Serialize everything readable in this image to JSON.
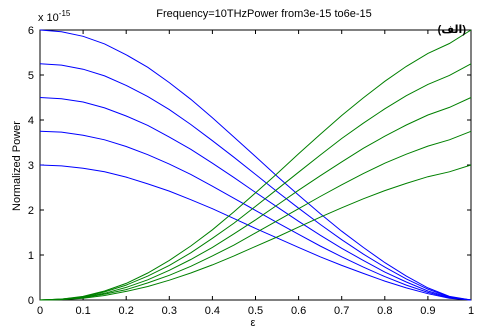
{
  "chart_data": {
    "type": "line",
    "title": "Frequency=10THzPower from3e-15  to6e-15",
    "annotation": "(الف)",
    "xlabel": "ε",
    "ylabel": "Normalized Power",
    "exponent_label": "x 10",
    "exponent_power": "-15",
    "xlim": [
      0,
      1
    ],
    "ylim": [
      0,
      6
    ],
    "x_ticks": [
      "0",
      "0.1",
      "0.2",
      "0.3",
      "0.4",
      "0.5",
      "0.6",
      "0.7",
      "0.8",
      "0.9",
      "1"
    ],
    "y_ticks": [
      "0",
      "1",
      "2",
      "3",
      "4",
      "5",
      "6"
    ],
    "grid": false,
    "x": [
      0,
      0.05,
      0.1,
      0.15,
      0.2,
      0.25,
      0.3,
      0.35,
      0.4,
      0.45,
      0.5,
      0.55,
      0.6,
      0.65,
      0.7,
      0.75,
      0.8,
      0.85,
      0.9,
      0.95,
      1
    ],
    "series": [
      {
        "color": "#0000ff",
        "values": [
          6.0,
          5.96,
          5.86,
          5.69,
          5.45,
          5.17,
          4.83,
          4.46,
          4.05,
          3.62,
          3.19,
          2.75,
          2.33,
          1.92,
          1.53,
          1.17,
          0.83,
          0.53,
          0.27,
          0.08,
          0.0
        ]
      },
      {
        "color": "#0000ff",
        "values": [
          5.25,
          5.22,
          5.13,
          4.98,
          4.77,
          4.52,
          4.23,
          3.9,
          3.54,
          3.17,
          2.79,
          2.41,
          2.04,
          1.68,
          1.34,
          1.02,
          0.73,
          0.47,
          0.24,
          0.07,
          0.0
        ]
      },
      {
        "color": "#0000ff",
        "values": [
          4.5,
          4.47,
          4.4,
          4.27,
          4.09,
          3.88,
          3.62,
          3.35,
          3.04,
          2.72,
          2.39,
          2.07,
          1.75,
          1.44,
          1.15,
          0.88,
          0.62,
          0.4,
          0.2,
          0.06,
          0.0
        ]
      },
      {
        "color": "#0000ff",
        "values": [
          3.75,
          3.73,
          3.66,
          3.56,
          3.41,
          3.23,
          3.02,
          2.79,
          2.53,
          2.26,
          1.99,
          1.72,
          1.46,
          1.2,
          0.96,
          0.73,
          0.52,
          0.33,
          0.17,
          0.05,
          0.0
        ]
      },
      {
        "color": "#0000ff",
        "values": [
          3.0,
          2.98,
          2.93,
          2.85,
          2.73,
          2.58,
          2.42,
          2.23,
          2.03,
          1.81,
          1.59,
          1.38,
          1.17,
          0.96,
          0.77,
          0.59,
          0.42,
          0.27,
          0.14,
          0.04,
          0.0
        ]
      },
      {
        "color": "#008000",
        "values": [
          0.0,
          0.02,
          0.08,
          0.2,
          0.37,
          0.6,
          0.88,
          1.2,
          1.56,
          1.96,
          2.38,
          2.81,
          3.25,
          3.68,
          4.1,
          4.49,
          4.86,
          5.19,
          5.48,
          5.7,
          6.0
        ]
      },
      {
        "color": "#008000",
        "values": [
          0.0,
          0.02,
          0.07,
          0.18,
          0.33,
          0.53,
          0.77,
          1.05,
          1.37,
          1.71,
          2.08,
          2.46,
          2.84,
          3.22,
          3.59,
          3.93,
          4.25,
          4.54,
          4.79,
          4.99,
          5.25
        ]
      },
      {
        "color": "#008000",
        "values": [
          0.0,
          0.02,
          0.06,
          0.15,
          0.28,
          0.45,
          0.66,
          0.9,
          1.17,
          1.47,
          1.78,
          2.11,
          2.44,
          2.76,
          3.07,
          3.37,
          3.64,
          3.89,
          4.11,
          4.28,
          4.5
        ]
      },
      {
        "color": "#008000",
        "values": [
          0.0,
          0.01,
          0.05,
          0.13,
          0.23,
          0.38,
          0.55,
          0.75,
          0.98,
          1.22,
          1.49,
          1.76,
          2.03,
          2.3,
          2.56,
          2.81,
          3.04,
          3.24,
          3.42,
          3.56,
          3.75
        ]
      },
      {
        "color": "#008000",
        "values": [
          0.0,
          0.01,
          0.04,
          0.1,
          0.19,
          0.3,
          0.44,
          0.6,
          0.78,
          0.98,
          1.19,
          1.4,
          1.62,
          1.84,
          2.05,
          2.25,
          2.43,
          2.59,
          2.74,
          2.85,
          3.0
        ]
      }
    ]
  }
}
